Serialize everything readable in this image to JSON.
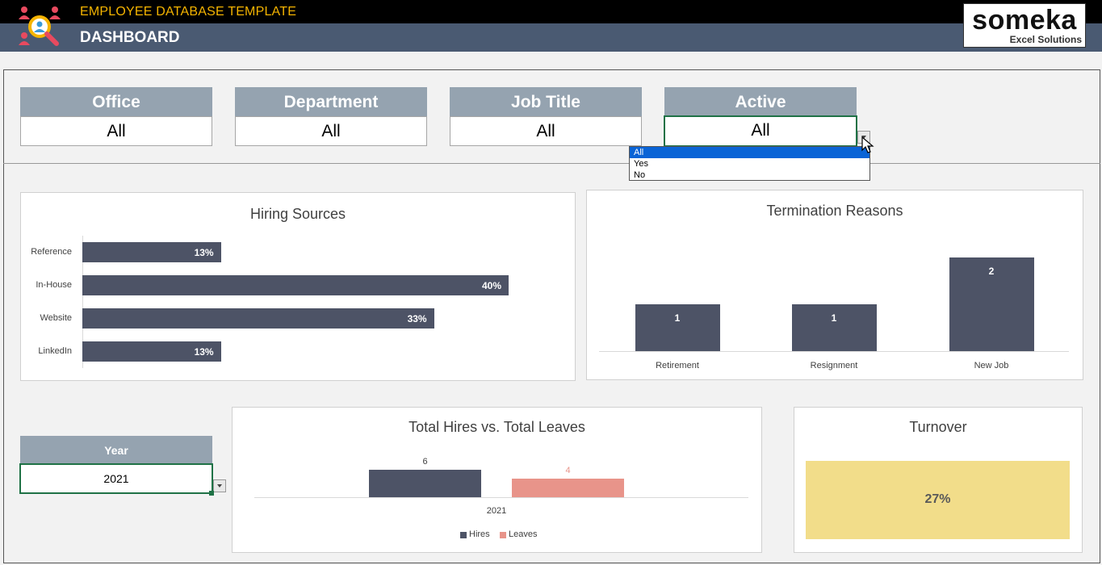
{
  "header": {
    "app_title": "EMPLOYEE DATABASE TEMPLATE",
    "page_title": "DASHBOARD",
    "brand_name": "someka",
    "brand_sub": "Excel Solutions"
  },
  "filters": [
    {
      "label": "Office",
      "value": "All"
    },
    {
      "label": "Department",
      "value": "All"
    },
    {
      "label": "Job Title",
      "value": "All"
    },
    {
      "label": "Active",
      "value": "All"
    }
  ],
  "active_dropdown": {
    "options": [
      "All",
      "Yes",
      "No"
    ],
    "selected": "All"
  },
  "year_filter": {
    "label": "Year",
    "value": "2021"
  },
  "chart_data": [
    {
      "type": "bar",
      "orientation": "horizontal",
      "title": "Hiring Sources",
      "categories": [
        "Reference",
        "In-House",
        "Website",
        "LinkedIn"
      ],
      "values": [
        13,
        40,
        33,
        13
      ],
      "value_labels": [
        "13%",
        "40%",
        "33%",
        "13%"
      ],
      "unit": "%",
      "color": "#4d5366"
    },
    {
      "type": "bar",
      "title": "Termination Reasons",
      "categories": [
        "Retirement",
        "Resignment",
        "New Job"
      ],
      "values": [
        1,
        1,
        2
      ],
      "value_labels": [
        "1",
        "1",
        "2"
      ],
      "color": "#4d5366"
    },
    {
      "type": "bar",
      "title": "Total Hires vs. Total Leaves",
      "categories": [
        "2021"
      ],
      "series": [
        {
          "name": "Hires",
          "values": [
            6
          ],
          "color": "#4d5366"
        },
        {
          "name": "Leaves",
          "values": [
            4
          ],
          "color": "#e8948a"
        }
      ],
      "legend": "bottom"
    }
  ],
  "turnover": {
    "title": "Turnover",
    "value": "27%",
    "color": "#f2dd8a"
  },
  "colors": {
    "header_bg": "#4a5a72",
    "accent_title": "#f5b400",
    "filter_head": "#95a3b0",
    "bar": "#4d5366",
    "leaves": "#e8948a",
    "selection": "#0a64d6"
  }
}
